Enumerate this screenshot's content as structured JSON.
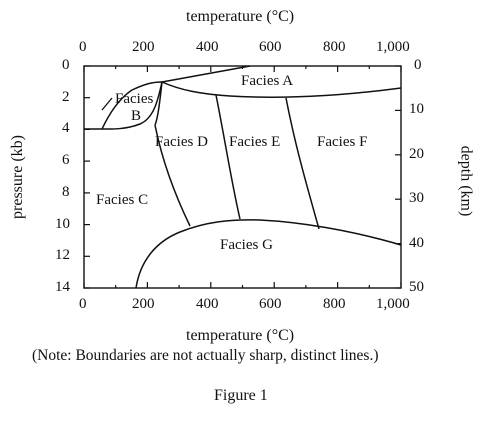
{
  "figure": {
    "top_axis_title": "temperature (°C)",
    "bottom_axis_title": "temperature (°C)",
    "left_axis_title": "pressure (kb)",
    "right_axis_title": "depth (km)",
    "note": "(Note: Boundaries are not actually sharp, distinct lines.)",
    "caption": "Figure 1"
  },
  "axes": {
    "temperature_ticks": [
      "0",
      "200",
      "400",
      "600",
      "800",
      "1,000"
    ],
    "pressure_ticks": [
      "0",
      "2",
      "4",
      "6",
      "8",
      "10",
      "12",
      "14"
    ],
    "depth_ticks": [
      "0",
      "10",
      "20",
      "30",
      "40",
      "50"
    ],
    "temperature_range": [
      0,
      1000
    ],
    "pressure_range": [
      0,
      14
    ],
    "depth_range": [
      0,
      50
    ]
  },
  "facies": {
    "a": "Facies A",
    "b_line1": "Facies",
    "b_line2": "B",
    "c": "Facies C",
    "d": "Facies D",
    "e": "Facies E",
    "f": "Facies F",
    "g": "Facies G"
  },
  "colors": {
    "line": "#111111",
    "background": "#ffffff"
  }
}
